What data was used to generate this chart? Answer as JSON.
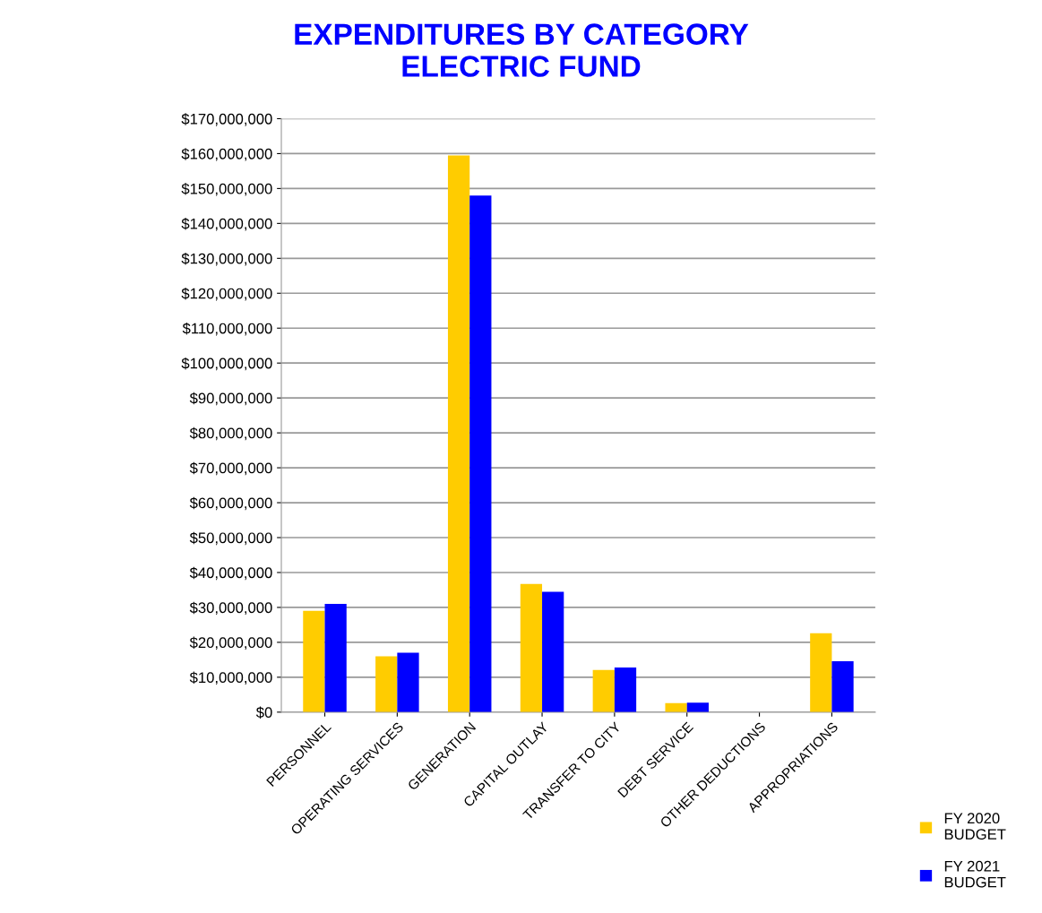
{
  "chart_data": {
    "type": "bar",
    "title": "EXPENDITURES BY CATEGORY\nELECTRIC FUND",
    "categories": [
      "PERSONNEL",
      "OPERATING SERVICES",
      "GENERATION",
      "CAPITAL OUTLAY",
      "TRANSFER TO CITY",
      "DEBT SERVICE",
      "OTHER DEDUCTIONS",
      "APPROPRIATIONS"
    ],
    "series": [
      {
        "name": "FY 2020\nBUDGET",
        "color": "#ffcc00",
        "values": [
          29000000,
          16000000,
          159500000,
          36700000,
          12100000,
          2600000,
          0,
          22600000
        ]
      },
      {
        "name": "FY 2021\nBUDGET",
        "color": "#0000ff",
        "values": [
          31000000,
          17000000,
          148000000,
          34500000,
          12800000,
          2700000,
          0,
          14600000
        ]
      }
    ],
    "ylim": [
      0,
      170000000
    ],
    "yticks": [
      {
        "value": 0,
        "label": "$0"
      },
      {
        "value": 10000000,
        "label": "$10,000,000"
      },
      {
        "value": 20000000,
        "label": "$20,000,000"
      },
      {
        "value": 30000000,
        "label": "$30,000,000"
      },
      {
        "value": 40000000,
        "label": "$40,000,000"
      },
      {
        "value": 50000000,
        "label": "$50,000,000"
      },
      {
        "value": 60000000,
        "label": "$60,000,000"
      },
      {
        "value": 70000000,
        "label": "$70,000,000"
      },
      {
        "value": 80000000,
        "label": "$80,000,000"
      },
      {
        "value": 90000000,
        "label": "$90,000,000"
      },
      {
        "value": 100000000,
        "label": "$100,000,000"
      },
      {
        "value": 110000000,
        "label": "$110,000,000"
      },
      {
        "value": 120000000,
        "label": "$120,000,000"
      },
      {
        "value": 130000000,
        "label": "$130,000,000"
      },
      {
        "value": 140000000,
        "label": "$140,000,000"
      },
      {
        "value": 150000000,
        "label": "$150,000,000"
      },
      {
        "value": 160000000,
        "label": "$160,000,000"
      },
      {
        "value": 170000000,
        "label": "$170,000,000"
      }
    ],
    "grid": "y",
    "legend": "bottom right"
  }
}
